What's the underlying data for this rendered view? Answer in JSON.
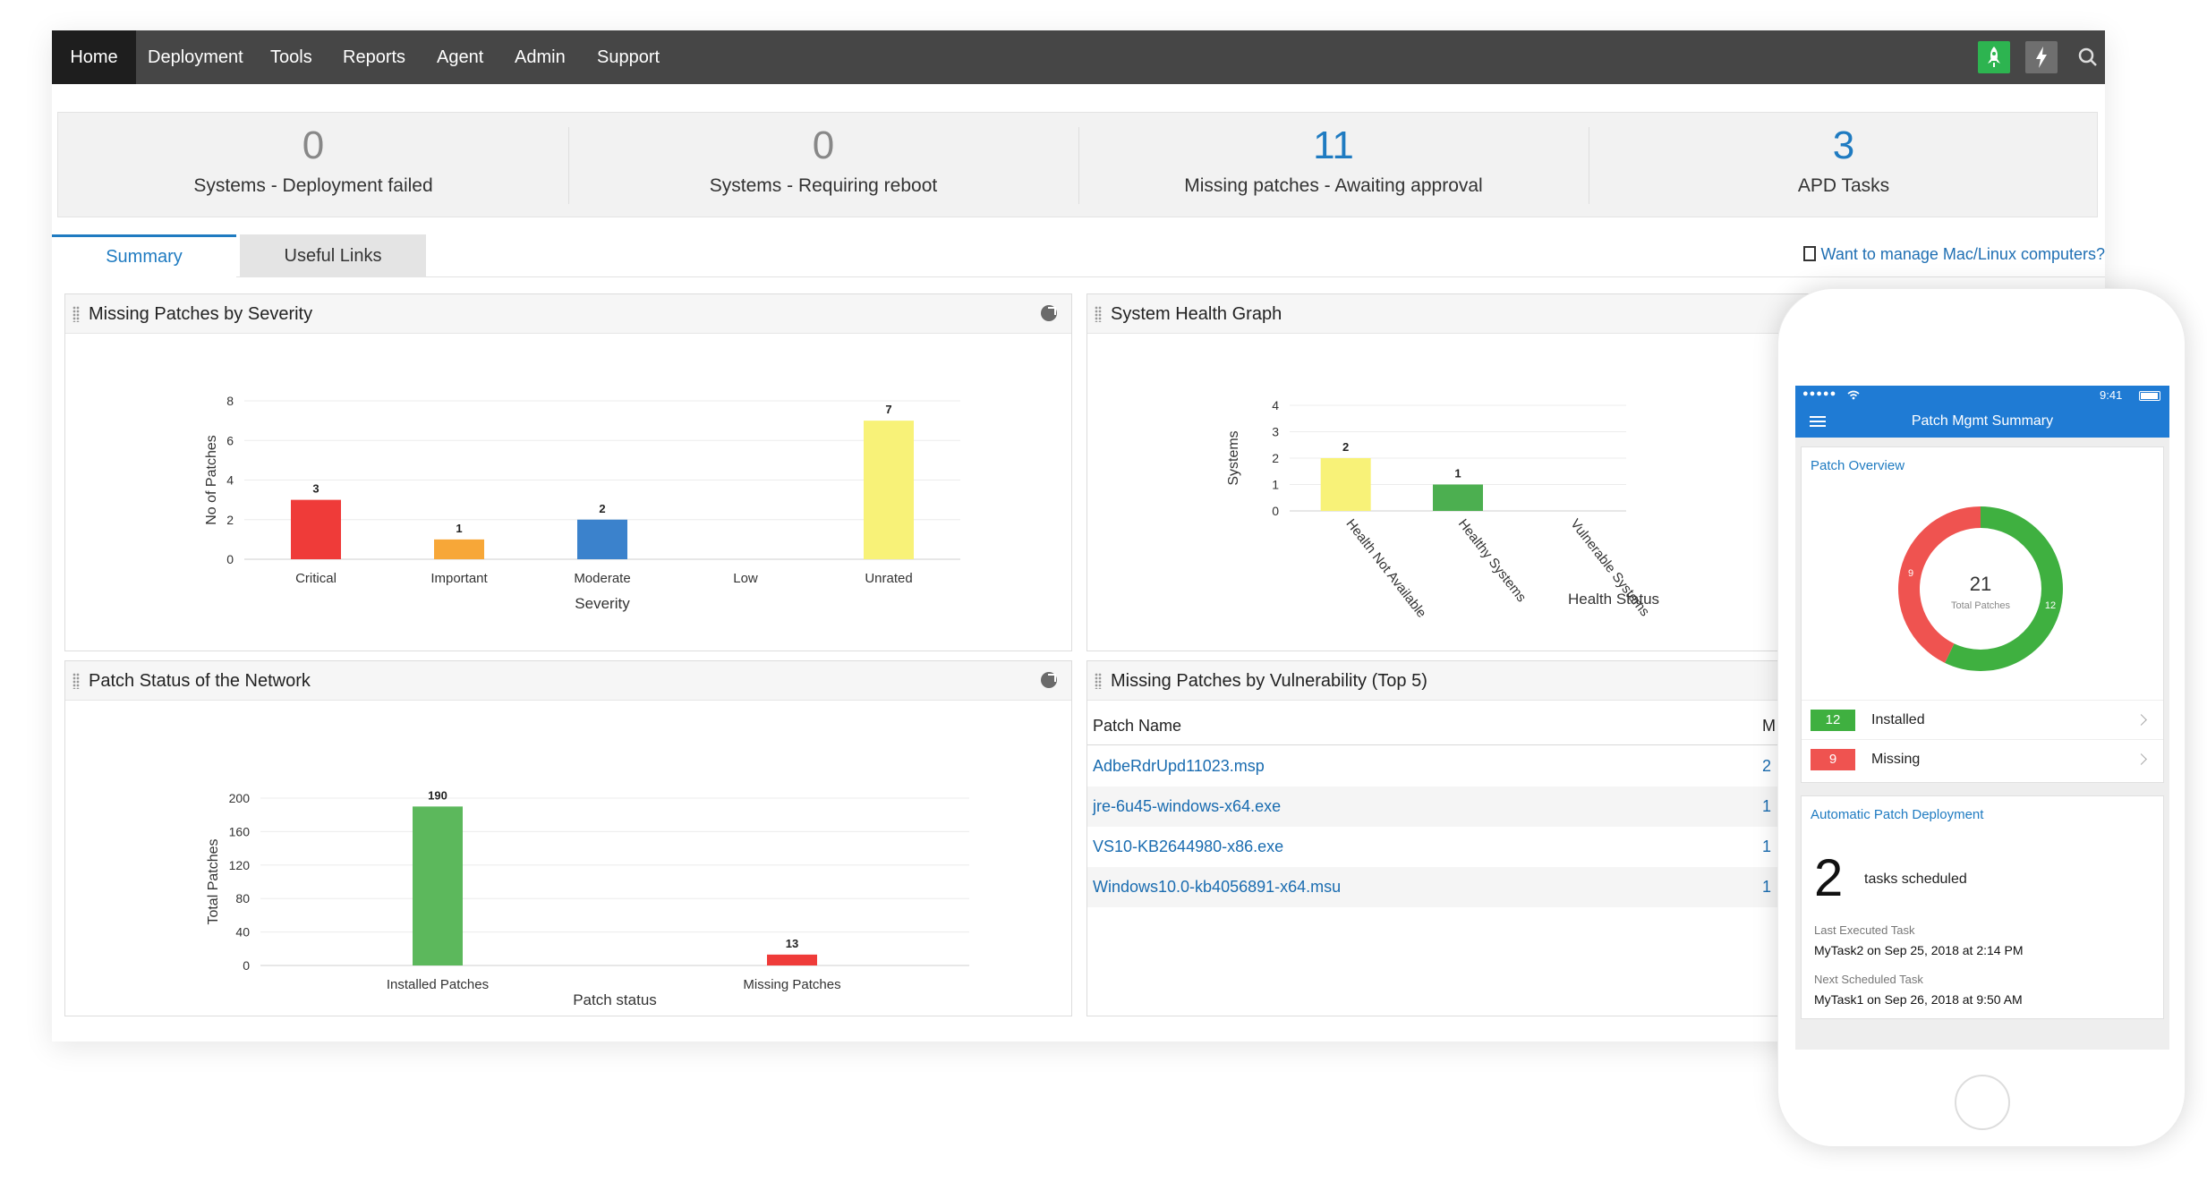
{
  "nav": {
    "items": [
      "Home",
      "Deployment",
      "Tools",
      "Reports",
      "Agent",
      "Admin",
      "Support"
    ],
    "active": "Home"
  },
  "stats": [
    {
      "value": "0",
      "label": "Systems - Deployment failed",
      "color": "#888888"
    },
    {
      "value": "0",
      "label": "Systems - Requiring reboot",
      "color": "#888888"
    },
    {
      "value": "11",
      "label": "Missing patches - Awaiting approval",
      "color": "#1f7bc1"
    },
    {
      "value": "3",
      "label": "APD Tasks",
      "color": "#1f7bc1"
    }
  ],
  "tabs": {
    "summary": "Summary",
    "useful_links": "Useful Links"
  },
  "mac_link": "Want to manage Mac/Linux computers?",
  "panels": {
    "severity": {
      "title": "Missing Patches by Severity"
    },
    "health": {
      "title": "System Health Graph"
    },
    "network": {
      "title": "Patch Status of the Network"
    },
    "vulnerability": {
      "title": "Missing Patches by Vulnerability (Top 5)"
    }
  },
  "chart_data": [
    {
      "type": "bar",
      "title": "Missing Patches by Severity",
      "categories": [
        "Critical",
        "Important",
        "Moderate",
        "Low",
        "Unrated"
      ],
      "values": [
        3,
        1,
        2,
        0,
        7
      ],
      "colors": [
        "#ef3b39",
        "#f7a738",
        "#3b82cc",
        "#9e9e9e",
        "#f8f278"
      ],
      "xlabel": "Severity",
      "ylabel": "No of Patches",
      "ylim": [
        0,
        8
      ],
      "yticks": [
        0,
        2,
        4,
        6,
        8
      ],
      "grid": true
    },
    {
      "type": "bar",
      "title": "System Health Graph",
      "categories": [
        "Health Not Available",
        "Healthy Systems",
        "Vulnerable Systems"
      ],
      "values": [
        2,
        1,
        0
      ],
      "colors": [
        "#f8f278",
        "#4caf50",
        "#ef3b39"
      ],
      "xlabel": "Health Status",
      "ylabel": "Systems",
      "ylim": [
        0,
        4
      ],
      "yticks": [
        0,
        1,
        2,
        3,
        4
      ],
      "grid": true
    },
    {
      "type": "bar",
      "title": "Patch Status of the Network",
      "categories": [
        "Installed Patches",
        "Missing Patches"
      ],
      "values": [
        190,
        13
      ],
      "colors": [
        "#5cb85c",
        "#ef3b39"
      ],
      "xlabel": "Patch status",
      "ylabel": "Total Patches",
      "ylim": [
        0,
        200
      ],
      "yticks": [
        0,
        40,
        80,
        120,
        160,
        200
      ],
      "grid": true
    },
    {
      "type": "pie",
      "title": "Patch Overview",
      "categories": [
        "Installed",
        "Missing"
      ],
      "values": [
        12,
        9
      ],
      "colors": [
        "#3fb040",
        "#ef5350"
      ],
      "center_value": "21",
      "center_label": "Total Patches"
    }
  ],
  "vuln_table": {
    "headers": [
      "Patch Name",
      "M"
    ],
    "rows": [
      {
        "name": "AdbeRdrUpd11023.msp",
        "count": "2"
      },
      {
        "name": "jre-6u45-windows-x64.exe",
        "count": "1"
      },
      {
        "name": "VS10-KB2644980-x86.exe",
        "count": "1"
      },
      {
        "name": "Windows10.0-kb4056891-x64.msu",
        "count": "1"
      }
    ]
  },
  "phone": {
    "signal": "●●●●●",
    "time": "9:41",
    "app_title": "Patch Mgmt Summary",
    "overview_title": "Patch Overview",
    "legend": [
      {
        "value": "12",
        "label": "Installed",
        "color": "#3fb040"
      },
      {
        "value": "9",
        "label": "Missing",
        "color": "#ef5350"
      }
    ],
    "apd": {
      "title": "Automatic Patch Deployment",
      "count": "2",
      "count_label": "tasks scheduled",
      "last_label": "Last Executed Task",
      "last_value": "MyTask2 on Sep 25, 2018 at 2:14 PM",
      "next_label": "Next Scheduled Task",
      "next_value": "MyTask1 on Sep 26, 2018 at 9:50 AM"
    }
  },
  "icons": {
    "rocket": "rocket-icon",
    "bolt": "lightning-icon",
    "search": "search-icon",
    "pie": "pie-chart-icon",
    "grip": "drag-handle-icon",
    "doc": "document-icon",
    "menu": "hamburger-menu-icon",
    "chevron": "chevron-right-icon"
  },
  "colors": {
    "navbar": "#464646",
    "nav_active": "#1e1e1e",
    "accent": "#1f7bc1",
    "phone_header": "#1f7bd4"
  }
}
